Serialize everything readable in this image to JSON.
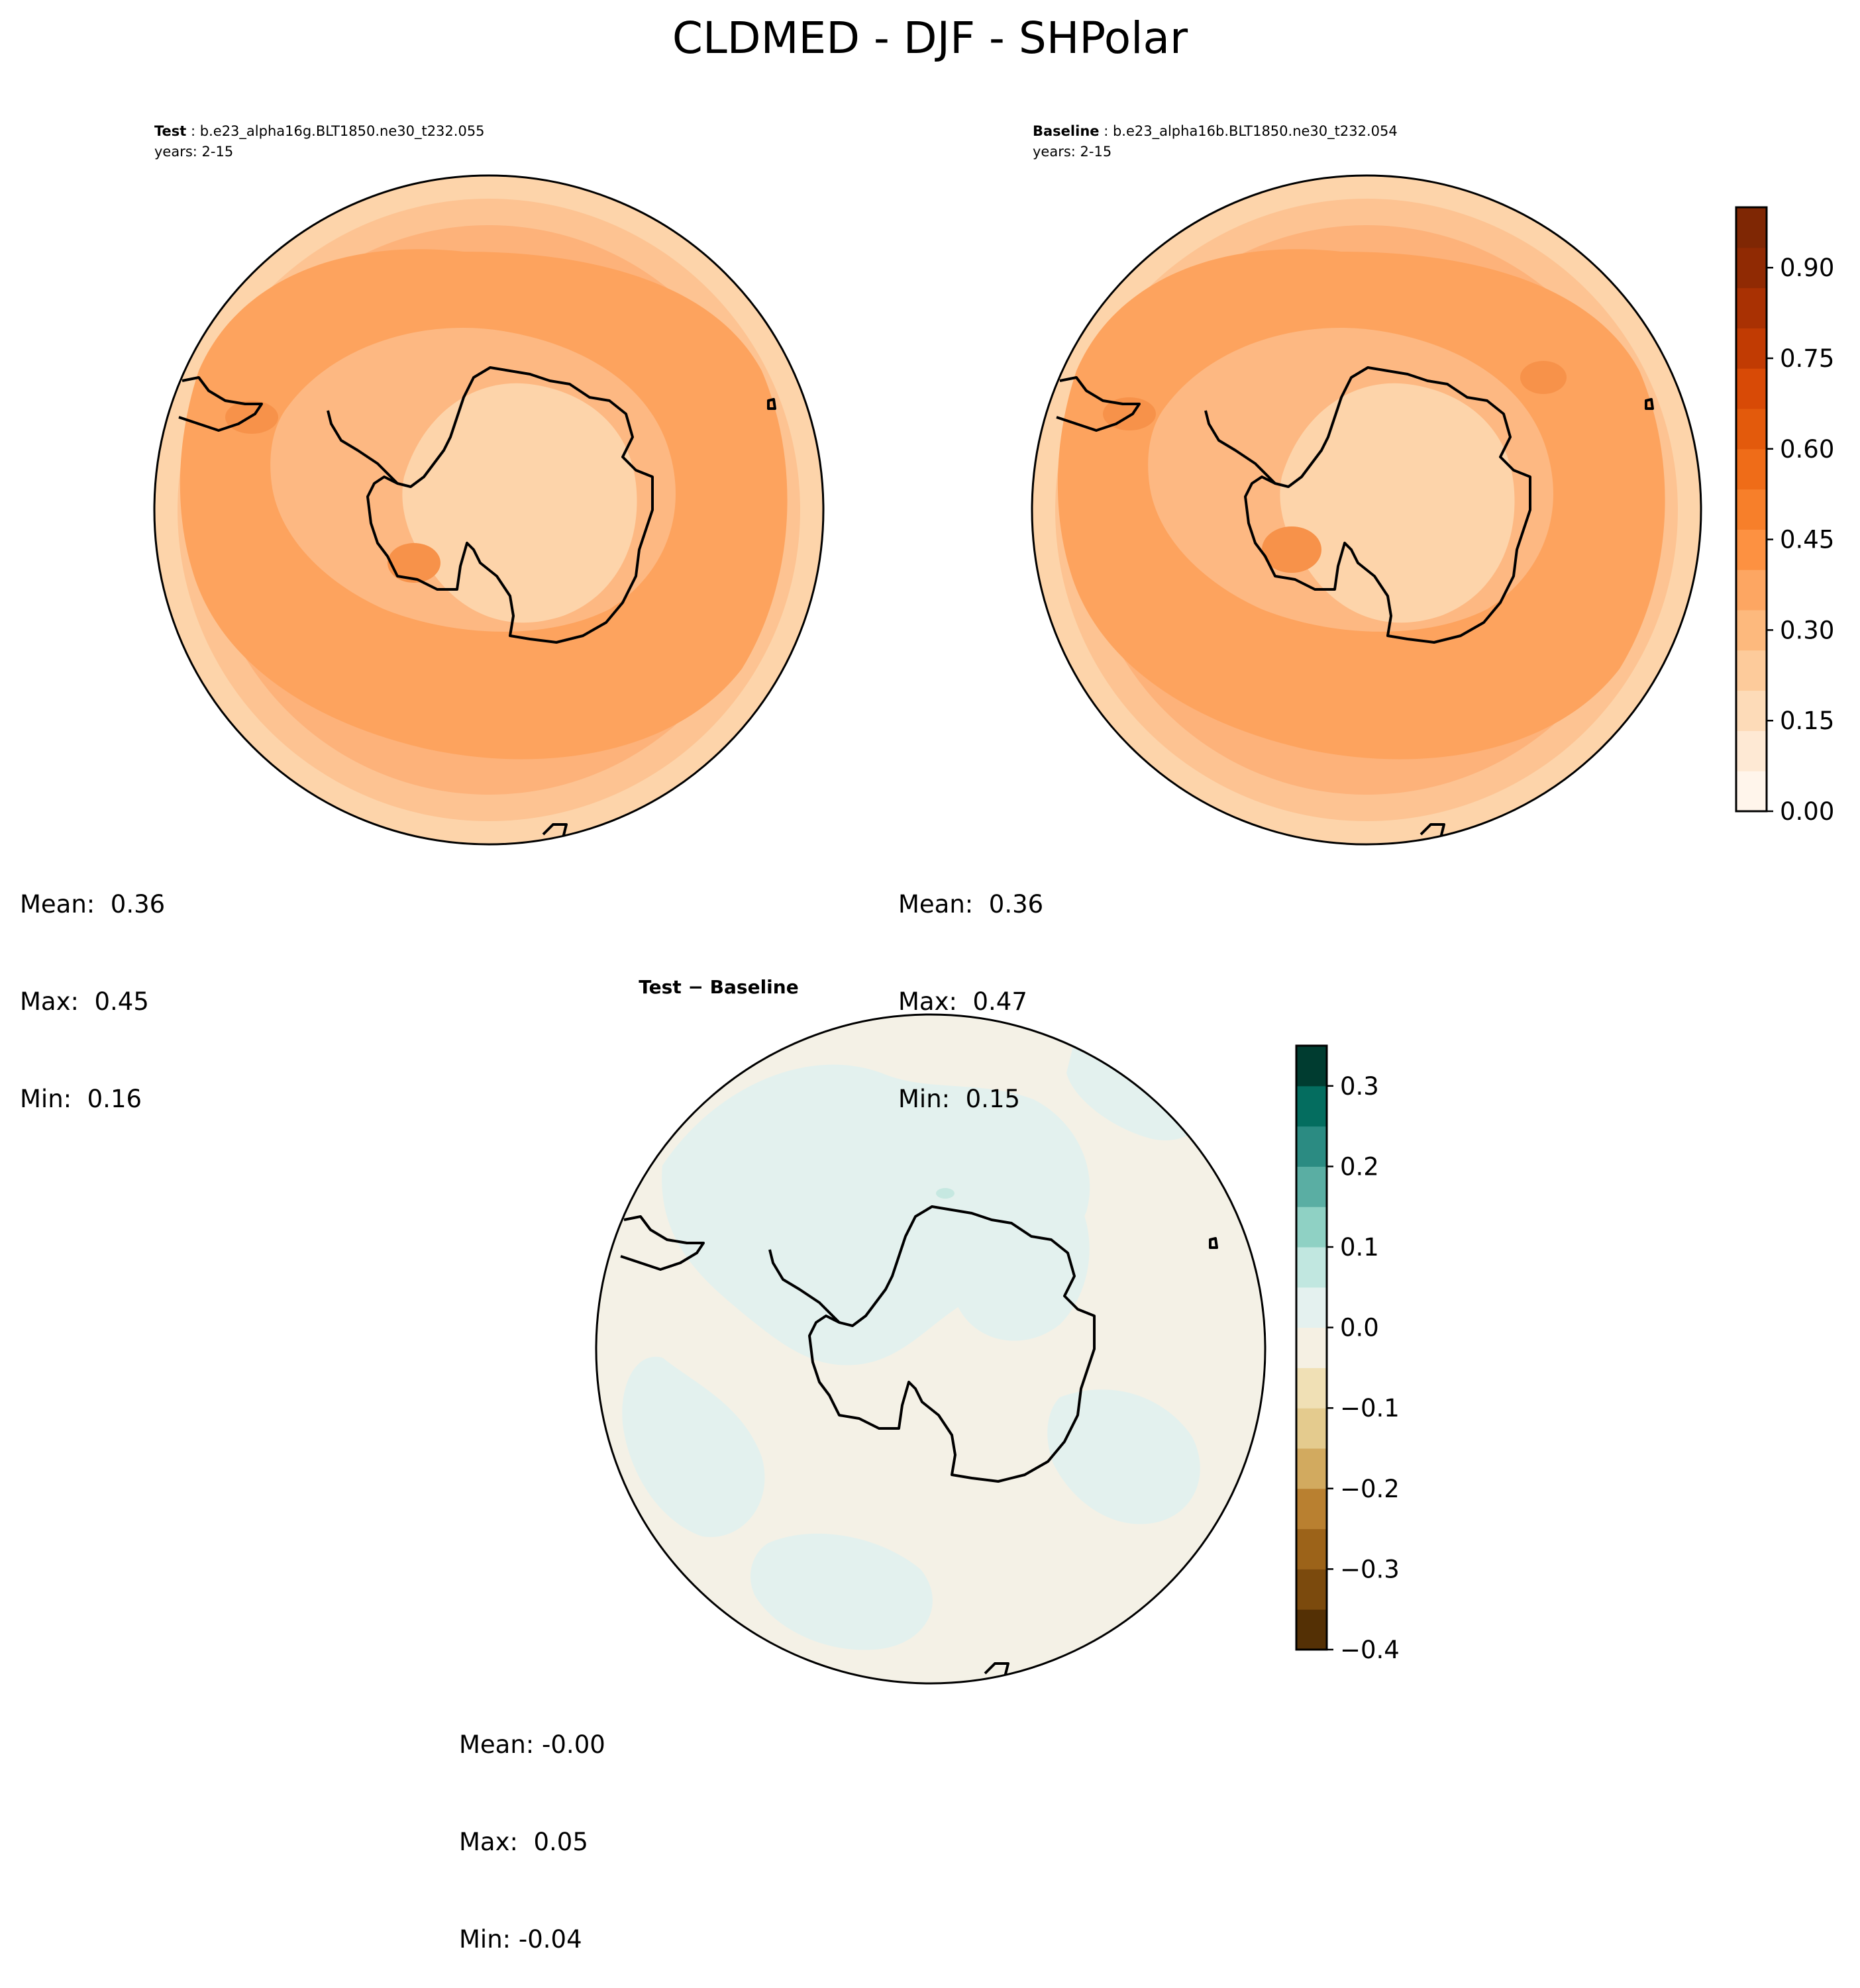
{
  "figure": {
    "title": "CLDMED - DJF - SHPolar"
  },
  "panels": [
    {
      "id": "test",
      "label_bold": "Test",
      "case": "b.e23_alpha16g.BLT1850.ne30_t232.055",
      "years": "years: 2-15",
      "stats": {
        "mean": "Mean:  0.36",
        "max": "Max:  0.45",
        "min": "Min:  0.16"
      }
    },
    {
      "id": "baseline",
      "label_bold": "Baseline",
      "case": "b.e23_alpha16b.BLT1850.ne30_t232.054",
      "years": "years: 2-15",
      "stats": {
        "mean": "Mean:  0.36",
        "max": "Max:  0.47",
        "min": "Min:  0.15"
      }
    },
    {
      "id": "diff",
      "title": "Test − Baseline",
      "stats": {
        "mean": "Mean: -0.00",
        "max": "Max:  0.05",
        "min": "Min: -0.04"
      }
    }
  ],
  "colorbars": {
    "field": {
      "ticks": [
        "0.00",
        "0.15",
        "0.30",
        "0.45",
        "0.60",
        "0.75",
        "0.90"
      ],
      "tick_values": [
        0,
        0.15,
        0.3,
        0.45,
        0.6,
        0.75,
        0.9
      ],
      "range": [
        0,
        1.0
      ],
      "levels": 20,
      "colors": [
        "#fff5eb",
        "#fee9d4",
        "#fddbb8",
        "#fdcb9b",
        "#fdb97d",
        "#fda662",
        "#fd9141",
        "#f77f2a",
        "#ef6c18",
        "#e35a0c",
        "#d84a06",
        "#c13b03",
        "#a93103",
        "#902a03",
        "#7f2704"
      ]
    },
    "diff": {
      "ticks": [
        "0.3",
        "0.2",
        "0.1",
        "0.0",
        "−0.1",
        "−0.2",
        "−0.3",
        "−0.4"
      ],
      "tick_values": [
        0.3,
        0.2,
        0.1,
        0.0,
        -0.1,
        -0.2,
        -0.3,
        -0.4
      ],
      "range": [
        -0.4,
        0.35
      ],
      "levels": 15,
      "colors": [
        "#543005",
        "#7b4a0d",
        "#9c6319",
        "#b98030",
        "#d2aa5f",
        "#e4cb8e",
        "#f0e0b5",
        "#f5f0e3",
        "#e4f1ef",
        "#c1e7e0",
        "#8fd1c4",
        "#5aaea3",
        "#2b8b82",
        "#046d5f",
        "#003c30"
      ]
    }
  },
  "map_colors": {
    "field_light": "#fdd4aa",
    "field_mid": "#fdb882",
    "field_dark": "#fda35e",
    "field_darker": "#f7924a",
    "diff_neutral": "#f4f1e6",
    "diff_pos": "#e3f1ee",
    "diff_pos2": "#c6e8e1"
  },
  "icons": [
    "antarctica-coastline",
    "south-america-tip",
    "new-zealand-fragment"
  ]
}
